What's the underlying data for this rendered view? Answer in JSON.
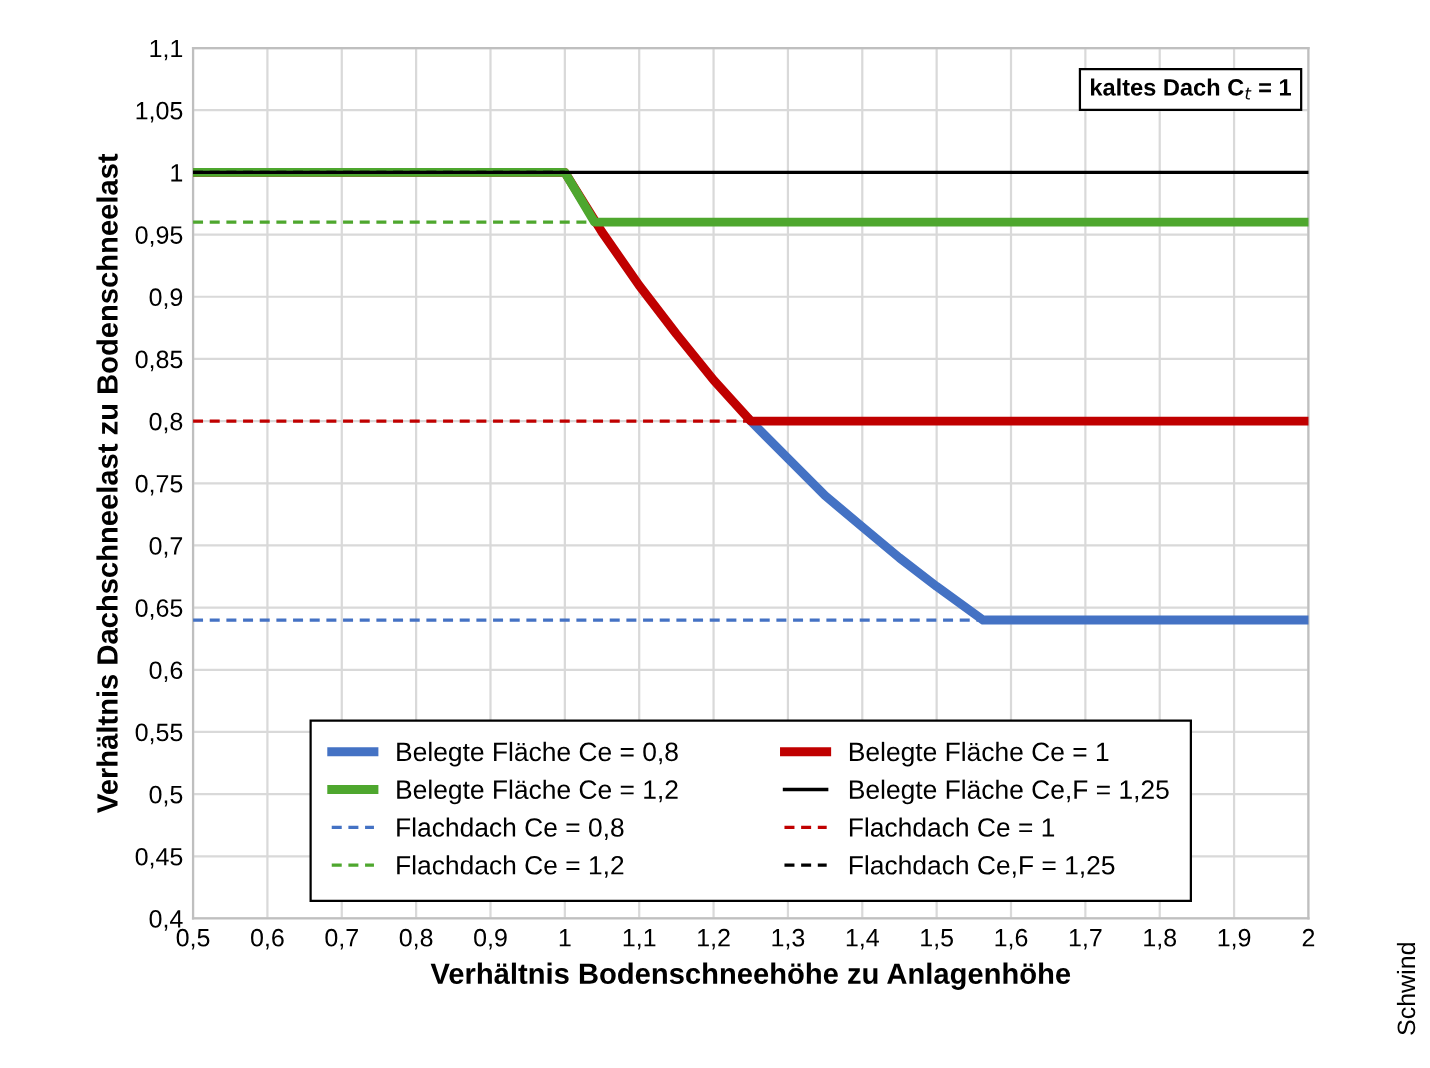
{
  "chart_data": {
    "type": "line",
    "xlabel": "Verhältnis Bodenschneehöhe zu Anlagenhöhe",
    "ylabel": "Verhältnis Dachschneelast zu Bodenschneelast",
    "xlim": [
      0.5,
      2
    ],
    "xticks": [
      {
        "value": 0.5,
        "label": "0,5"
      },
      {
        "value": 0.6,
        "label": "0,6"
      },
      {
        "value": 0.7,
        "label": "0,7"
      },
      {
        "value": 0.8,
        "label": "0,8"
      },
      {
        "value": 0.9,
        "label": "0,9"
      },
      1,
      {
        "value": 1.1,
        "label": "1,1"
      },
      {
        "value": 1.2,
        "label": "1,2"
      },
      {
        "value": 1.3,
        "label": "1,3"
      },
      {
        "value": 1.4,
        "label": "1,4"
      },
      {
        "value": 1.5,
        "label": "1,5"
      },
      {
        "value": 1.6,
        "label": "1,6"
      },
      {
        "value": 1.7,
        "label": "1,7"
      },
      {
        "value": 1.8,
        "label": "1,8"
      },
      {
        "value": 1.9,
        "label": "1,9"
      },
      2
    ],
    "ylim": [
      0.4,
      1.1
    ],
    "yticks": [
      {
        "value": 0.4,
        "label": "0,4"
      },
      {
        "value": 0.45,
        "label": "0,45"
      },
      {
        "value": 0.5,
        "label": "0,5"
      },
      {
        "value": 0.55,
        "label": "0,55"
      },
      {
        "value": 0.6,
        "label": "0,6"
      },
      {
        "value": 0.65,
        "label": "0,65"
      },
      {
        "value": 0.7,
        "label": "0,7"
      },
      {
        "value": 0.75,
        "label": "0,75"
      },
      {
        "value": 0.8,
        "label": "0,8"
      },
      {
        "value": 0.85,
        "label": "0,85"
      },
      {
        "value": 0.9,
        "label": "0,9"
      },
      {
        "value": 0.95,
        "label": "0,95"
      },
      1,
      {
        "value": 1.05,
        "label": "1,05"
      },
      {
        "value": 1.1,
        "label": "1,1"
      }
    ],
    "grid": true,
    "legend": "bottom",
    "marker": "none",
    "annotations": [
      "kaltes Dach C$_{t}$ = 1",
      "Schwind"
    ],
    "series": [
      {
        "name": "Belegte Fläche Ce = 0,8",
        "color": "#4472c4",
        "line_style": "solid",
        "x": [
          1.25,
          1.3,
          1.35,
          1.4,
          1.45,
          1.5,
          1.5625,
          2.0
        ],
        "values": [
          0.8,
          0.77,
          0.74,
          0.715,
          0.69,
          0.667,
          0.64,
          0.64
        ]
      },
      {
        "name": "Belegte Fläche Ce = 1",
        "color": "#c00000",
        "line_style": "solid",
        "x": [
          0.5,
          1.0,
          1.05,
          1.1,
          1.15,
          1.2,
          1.25,
          2.0
        ],
        "values": [
          1,
          1,
          0.952,
          0.909,
          0.87,
          0.833,
          0.8,
          0.8
        ]
      },
      {
        "name": "Belegte Fläche Ce = 1,2",
        "color": "#4ea72e",
        "line_style": "solid",
        "x": [
          0.5,
          1.0,
          1.04,
          2.0
        ],
        "values": [
          1,
          1,
          0.96,
          0.96
        ]
      },
      {
        "name": "Belegte Fläche Ce,F = 1,25",
        "color": "#000000",
        "line_style": "solid",
        "x": [
          0.5,
          2.0
        ],
        "values": [
          1,
          1
        ]
      },
      {
        "name": "Flachdach Ce = 0,8",
        "color": "#4472c4",
        "line_style": "dashed",
        "x": [
          0.5,
          1.5625
        ],
        "values": [
          0.64,
          0.64
        ]
      },
      {
        "name": "Flachdach Ce = 1",
        "color": "#c00000",
        "line_style": "dashed",
        "x": [
          0.5,
          1.25
        ],
        "values": [
          0.8,
          0.8
        ]
      },
      {
        "name": "Flachdach Ce = 1,2",
        "color": "#4ea72e",
        "line_style": "dashed",
        "x": [
          0.5,
          1.04
        ],
        "values": [
          0.96,
          0.96
        ]
      },
      {
        "name": "Flachdach Ce,F = 1,25",
        "color": "#000000",
        "line_style": "dashed",
        "x": [
          0.5,
          1.0
        ],
        "values": [
          1,
          1
        ]
      }
    ]
  }
}
